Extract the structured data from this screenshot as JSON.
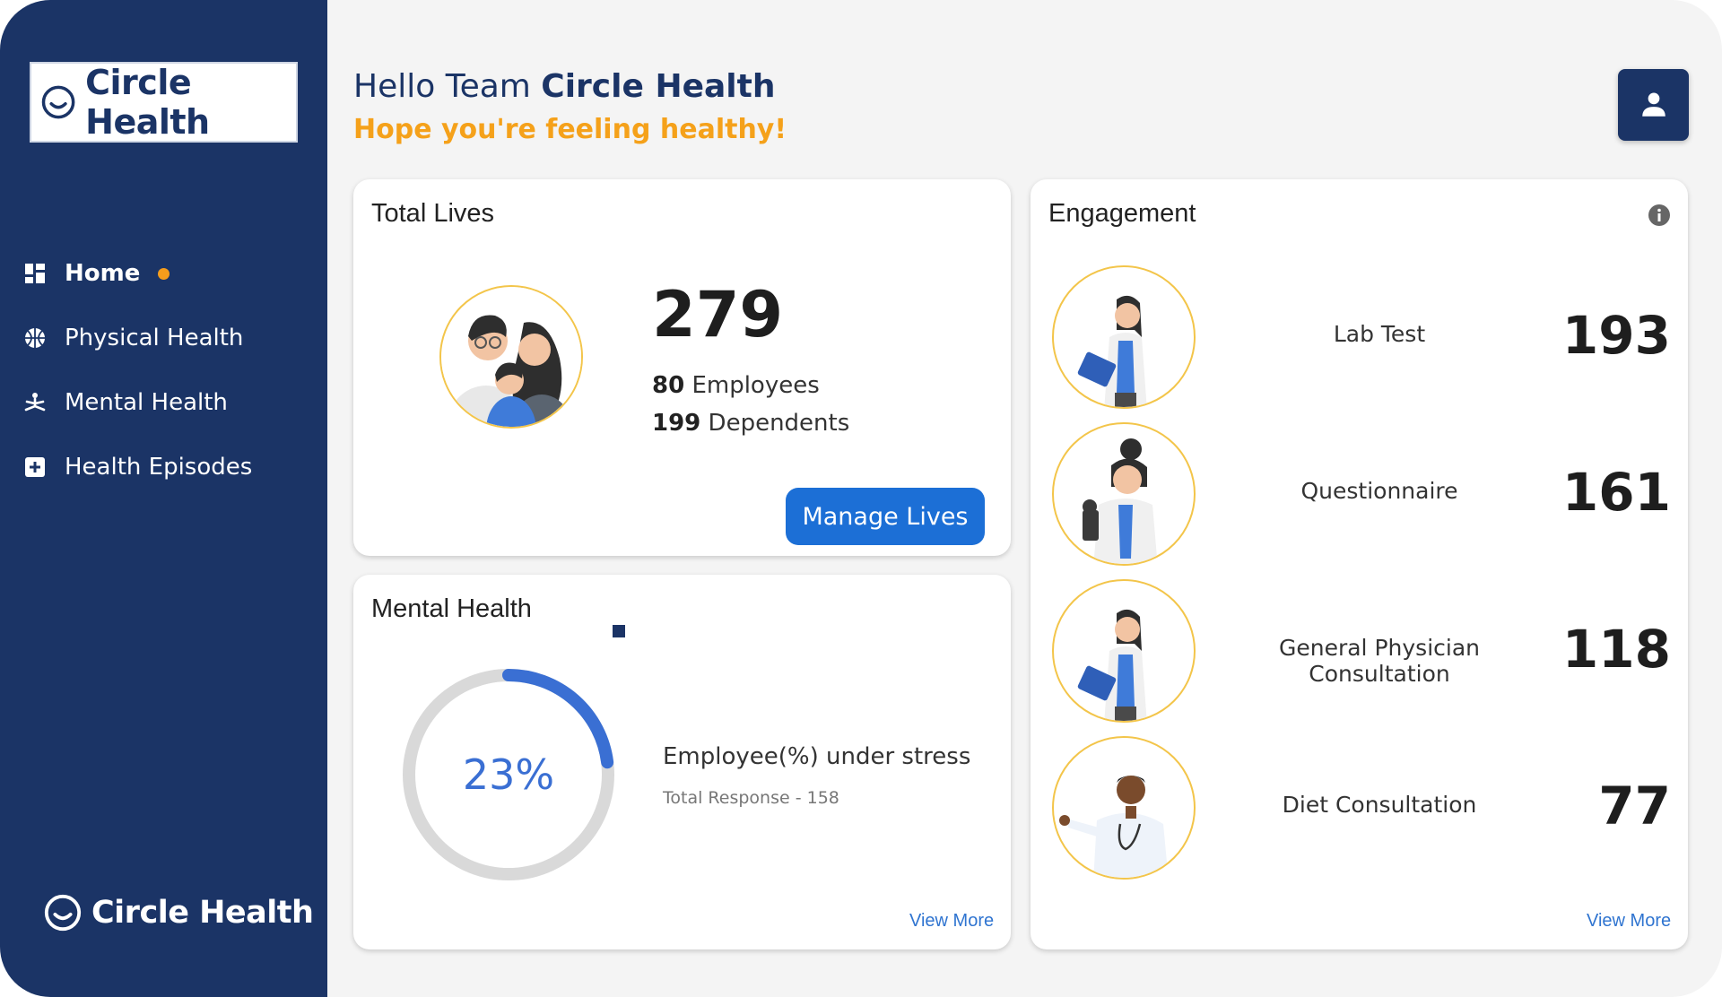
{
  "brand": {
    "name": "Circle Health"
  },
  "sidebar": {
    "items": [
      {
        "label": "Home",
        "icon": "dashboard-icon",
        "active": true
      },
      {
        "label": "Physical Health",
        "icon": "basketball-icon"
      },
      {
        "label": "Mental Health",
        "icon": "meditation-icon"
      },
      {
        "label": "Health Episodes",
        "icon": "plus-box-icon"
      }
    ],
    "footer_brand": "Circle Health"
  },
  "header": {
    "greeting_prefix": "Hello Team",
    "greeting_name": "Circle Health",
    "subtitle": "Hope you're feeling healthy!",
    "profile_icon": "user-icon"
  },
  "total_lives": {
    "title": "Total Lives",
    "total": "279",
    "employees_count": "80",
    "employees_label": "Employees",
    "dependents_count": "199",
    "dependents_label": "Dependents",
    "button_label": "Manage Lives"
  },
  "mental_health": {
    "title": "Mental Health",
    "percent_value": 23,
    "percent_label": "23%",
    "stress_label": "Employee(%) under stress",
    "total_response": "Total Response - 158",
    "view_more": "View More"
  },
  "engagement": {
    "title": "Engagement",
    "items": [
      {
        "label": "Lab Test",
        "value": "193"
      },
      {
        "label": "Questionnaire",
        "value": "161"
      },
      {
        "label": "General Physician Consultation",
        "value": "118"
      },
      {
        "label": "Diet Consultation",
        "value": "77"
      }
    ],
    "view_more": "View More"
  },
  "colors": {
    "sidebar": "#1b3466",
    "accent_orange": "#f5a11a",
    "primary_blue": "#1c6fd6",
    "donut_fill": "#3a6fd3",
    "donut_track": "#d9d9d9"
  }
}
